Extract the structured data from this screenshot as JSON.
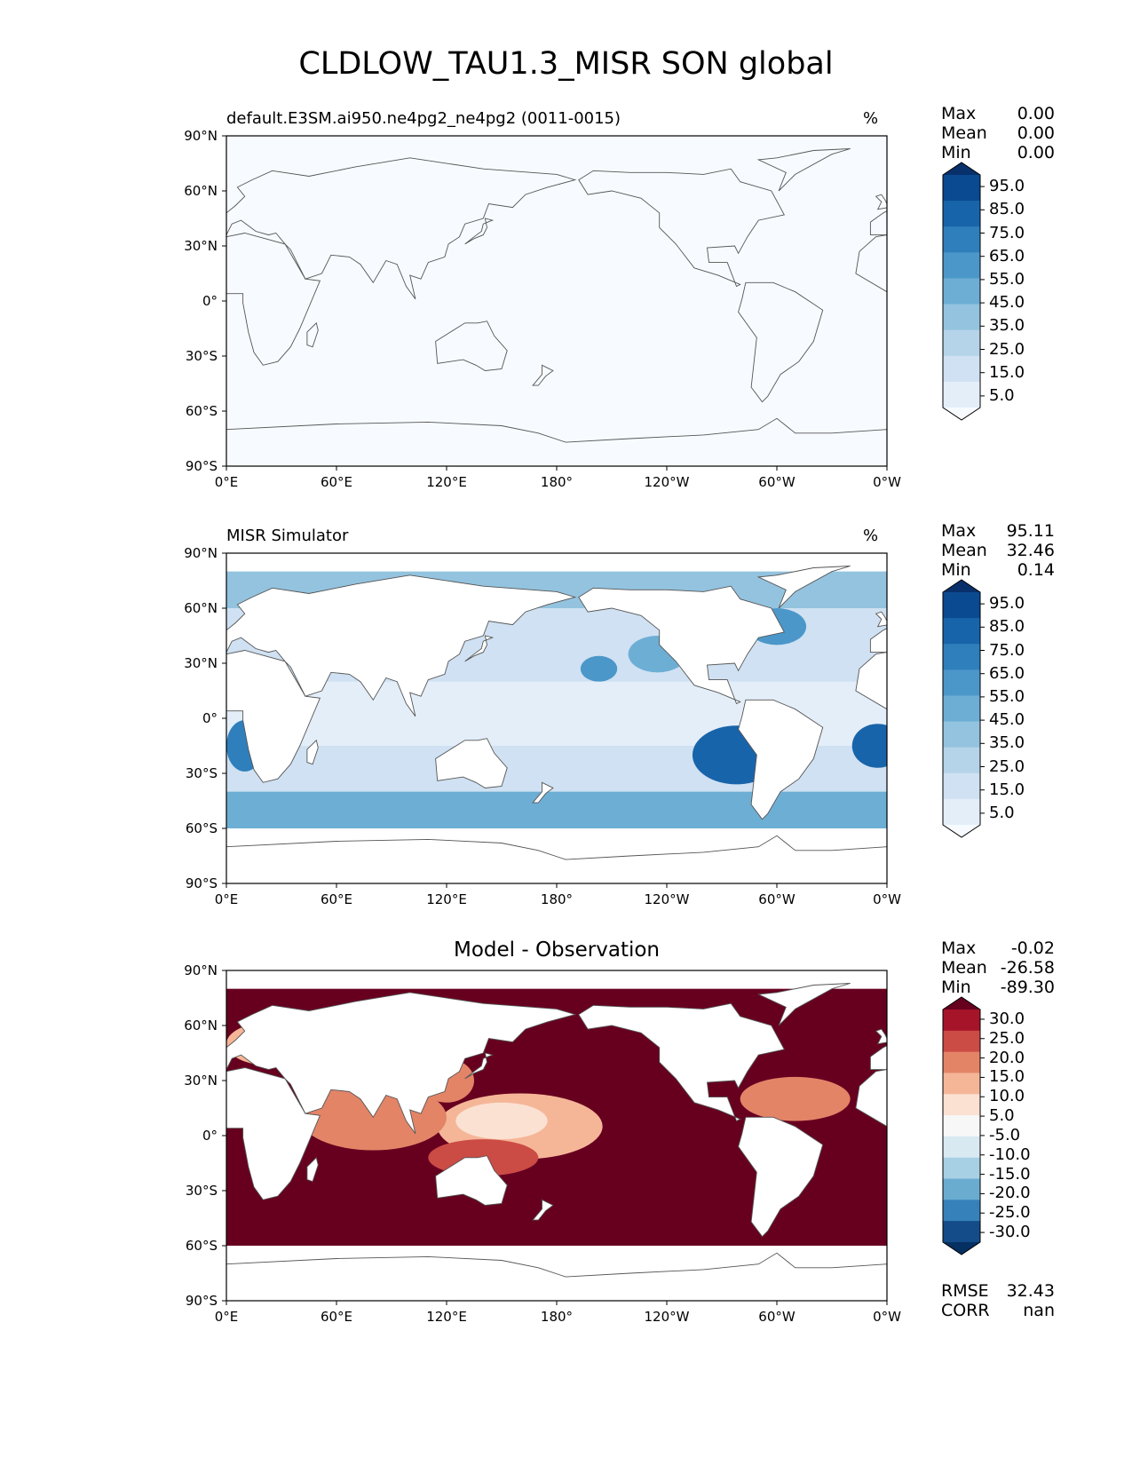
{
  "figure_title": "CLDLOW_TAU1.3_MISR SON global",
  "colors": {
    "blues": [
      "#f7fbff",
      "#e3eef9",
      "#cfe1f2",
      "#b5d4e9",
      "#93c3df",
      "#6daed5",
      "#4b97c9",
      "#2f7fbc",
      "#1864aa",
      "#0a4a90",
      "#08306b"
    ],
    "reds": [
      "#67001f",
      "#a51429",
      "#cb4b45",
      "#e38467",
      "#f5b698",
      "#fbe1d2",
      "#f7f7f7",
      "#d9e9f2",
      "#a8d0e4",
      "#6aacd0",
      "#3681ba",
      "#134c88",
      "#053061"
    ],
    "land_outline": "#555555"
  },
  "panels": [
    {
      "id": "test",
      "title_left": "default.E3SM.ai950.ne4pg2_ne4pg2 (0011-0015)",
      "title_right": "%",
      "title_center": "",
      "stats": [
        {
          "label": "Max",
          "value": "0.00"
        },
        {
          "label": "Mean",
          "value": "0.00"
        },
        {
          "label": "Min",
          "value": "0.00"
        }
      ],
      "colorbar_labels": [
        "95.0",
        "85.0",
        "75.0",
        "65.0",
        "55.0",
        "45.0",
        "35.0",
        "25.0",
        "15.0",
        "5.0"
      ],
      "footer": []
    },
    {
      "id": "reference",
      "title_left": "MISR Simulator",
      "title_right": "%",
      "title_center": "",
      "stats": [
        {
          "label": "Max",
          "value": "95.11"
        },
        {
          "label": "Mean",
          "value": "32.46"
        },
        {
          "label": "Min",
          "value": "0.14"
        }
      ],
      "colorbar_labels": [
        "95.0",
        "85.0",
        "75.0",
        "65.0",
        "55.0",
        "45.0",
        "35.0",
        "25.0",
        "15.0",
        "5.0"
      ],
      "footer": []
    },
    {
      "id": "difference",
      "title_left": "",
      "title_right": "",
      "title_center": "Model - Observation",
      "stats": [
        {
          "label": "Max",
          "value": "-0.02"
        },
        {
          "label": "Mean",
          "value": "-26.58"
        },
        {
          "label": "Min",
          "value": "-89.30"
        }
      ],
      "colorbar_labels": [
        "30.0",
        "25.0",
        "20.0",
        "15.0",
        "10.0",
        "5.0",
        "-5.0",
        "-10.0",
        "-15.0",
        "-20.0",
        "-25.0",
        "-30.0"
      ],
      "footer": [
        {
          "label": "RMSE",
          "value": "32.43"
        },
        {
          "label": "CORR",
          "value": "nan"
        }
      ]
    }
  ],
  "axes": {
    "y_ticks": [
      "90°N",
      "60°N",
      "30°N",
      "0°",
      "30°S",
      "60°S",
      "90°S"
    ],
    "x_ticks": [
      "0°E",
      "60°E",
      "120°E",
      "180°",
      "120°W",
      "60°W",
      "0°W"
    ],
    "y_values": [
      90,
      60,
      30,
      0,
      -30,
      -60,
      -90
    ],
    "x_values": [
      0,
      60,
      120,
      180,
      240,
      300,
      360
    ]
  },
  "chart_data": [
    {
      "type": "heatmap",
      "title": "default.E3SM.ai950.ne4pg2_ne4pg2 (0011-0015)",
      "units": "%",
      "xlim": [
        0,
        360
      ],
      "ylim": [
        -90,
        90
      ],
      "stats": {
        "max": 0.0,
        "mean": 0.0,
        "min": 0.0
      },
      "levels": [
        5,
        15,
        25,
        35,
        45,
        55,
        65,
        75,
        85,
        95
      ]
    },
    {
      "type": "heatmap",
      "title": "MISR Simulator",
      "units": "%",
      "xlim": [
        0,
        360
      ],
      "ylim": [
        -90,
        90
      ],
      "stats": {
        "max": 95.11,
        "mean": 32.46,
        "min": 0.14
      },
      "levels": [
        5,
        15,
        25,
        35,
        45,
        55,
        65,
        75,
        85,
        95
      ]
    },
    {
      "type": "heatmap",
      "title": "Model - Observation",
      "xlim": [
        0,
        360
      ],
      "ylim": [
        -90,
        90
      ],
      "stats": {
        "max": -0.02,
        "mean": -26.58,
        "min": -89.3,
        "rmse": 32.43,
        "corr": "nan"
      },
      "levels": [
        -30,
        -25,
        -20,
        -15,
        -10,
        -5,
        5,
        10,
        15,
        20,
        25,
        30
      ]
    }
  ]
}
